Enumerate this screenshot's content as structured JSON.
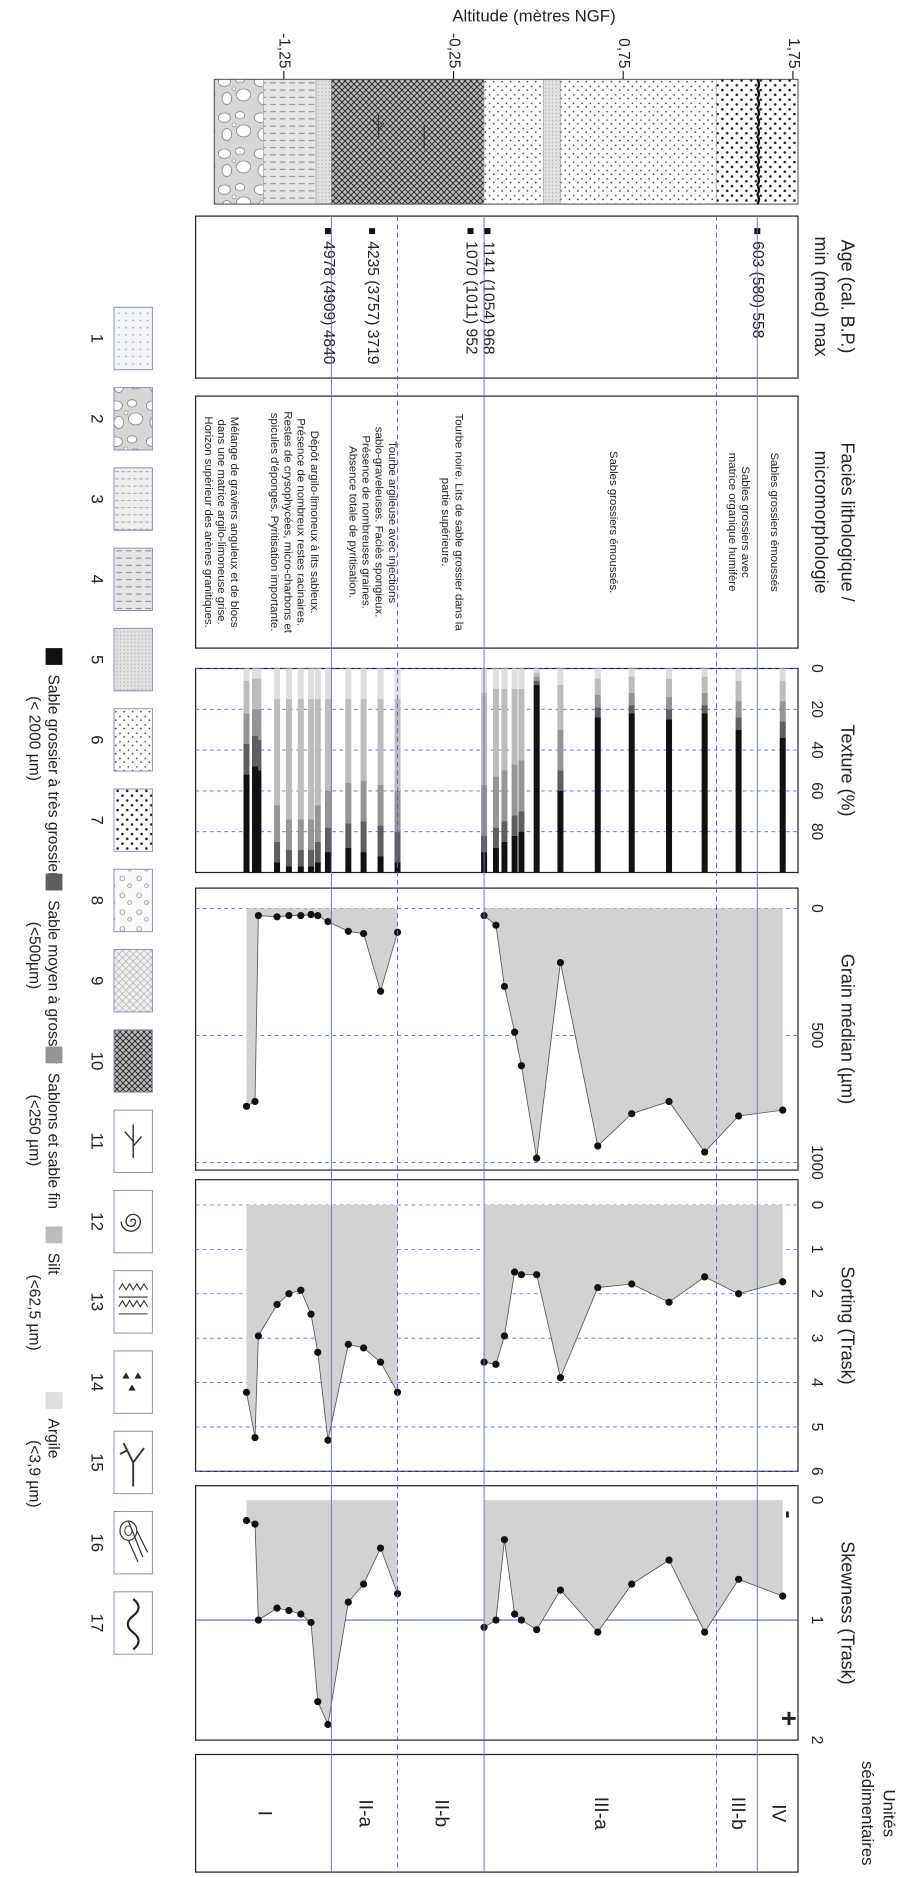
{
  "chart_data": {
    "type": "strat",
    "title": "Altitude (mètres NGF)",
    "altlim": [
      -1.77,
      1.78
    ],
    "altticks": [
      {
        "value": -1.25,
        "label": "-1,25"
      },
      {
        "value": -0.25,
        "label": "-0,25"
      },
      {
        "value": 0.75,
        "label": "0,75"
      },
      {
        "value": 1.75,
        "label": "1,75"
      }
    ],
    "lithology": [
      {
        "bottom": -1.66,
        "top": -1.37,
        "pattern": 2
      },
      {
        "bottom": -1.37,
        "top": -1.06,
        "pattern": 4
      },
      {
        "bottom": -1.06,
        "top": -0.97,
        "pattern": 5
      },
      {
        "bottom": -0.97,
        "top": -0.07,
        "pattern": 10
      },
      {
        "bottom": -0.07,
        "top": 0.28,
        "pattern": 6
      },
      {
        "bottom": 0.28,
        "top": 0.38,
        "pattern": 5
      },
      {
        "bottom": 0.38,
        "top": 1.3,
        "pattern": 6
      },
      {
        "bottom": 1.3,
        "top": 1.54,
        "pattern": 7
      },
      {
        "bottom": 1.54,
        "top": 1.78,
        "pattern": 7
      }
    ],
    "age": {
      "title_lines": [
        "Age (cal. B.P.)",
        "min (med) max"
      ],
      "dates": [
        {
          "altitude": 1.54,
          "label": "603 (580) 558"
        },
        {
          "altitude": -0.05,
          "label": "1141 (1054) 968"
        },
        {
          "altitude": -0.15,
          "label": "1070 (1011) 952"
        },
        {
          "altitude": -0.73,
          "label": "4235 (3757) 3719"
        },
        {
          "altitude": -0.99,
          "label": "4978 (4909) 4840"
        }
      ]
    },
    "facies": {
      "title_lines": [
        "Faciès lithologique /",
        "micromorphologie"
      ],
      "notes": [
        {
          "altitude": 1.64,
          "lines": [
            "Sables grossiers émoussés"
          ]
        },
        {
          "altitude": 1.43,
          "lines": [
            "Sables grossiers avec",
            "matrice organique humifère"
          ]
        },
        {
          "altitude": 0.69,
          "lines": [
            "Sables grossiers émoussés."
          ]
        },
        {
          "altitude": -0.26,
          "lines": [
            "Tourbe noire. Lits de sable grossier dans la",
            "partie supérieure."
          ]
        },
        {
          "altitude": -0.73,
          "lines": [
            "Tourbe argileuse avec injections",
            "sablo-graveleuses. Faciès spongieux.",
            "Présence de nombreuses graines.",
            "Absence totale de pyritisation."
          ]
        },
        {
          "altitude": -1.19,
          "lines": [
            "Dépôt argilo-limoneux à lits sableux.",
            "Présence de nombreux restes racinaires.",
            "Restes de crysophycées, micro-charbons et",
            "spicules d'éponges. Pyritisation importante."
          ]
        },
        {
          "altitude": -1.62,
          "lines": [
            "Mélange de graviers anguleux et de blocs",
            "dans une matrice argilo-limoneuse grise.",
            "Horizon supérieur des arènes granitiques."
          ]
        }
      ]
    },
    "altitude": [
      1.69,
      1.43,
      1.23,
      1.02,
      0.8,
      0.6,
      0.38,
      0.24,
      0.15,
      0.11,
      0.05,
      0.0,
      -0.07,
      null,
      -0.58,
      -0.68,
      -0.78,
      -0.87,
      -0.99,
      -1.05,
      -1.09,
      -1.15,
      -1.22,
      -1.29,
      -1.4,
      -1.42,
      -1.47
    ],
    "texture": {
      "title": "Texture (%)",
      "xlim": [
        0,
        100
      ],
      "xticks": [
        0,
        20,
        40,
        60,
        80
      ],
      "grid": true,
      "series": [
        {
          "name": "Sable grossier à très grossier",
          "range": "(< 2000 µm)",
          "color": "#111111",
          "values": [
            66,
            70,
            78,
            75,
            78,
            76,
            40,
            92,
            20,
            18,
            15,
            12,
            10,
            null,
            5,
            8,
            10,
            12,
            10,
            5,
            3,
            3,
            3,
            5,
            50,
            52,
            48
          ]
        },
        {
          "name": "Sable moyen à grossier",
          "range": "(<500µm)",
          "color": "#5e5e5e",
          "values": [
            8,
            6,
            4,
            5,
            4,
            5,
            10,
            2,
            10,
            10,
            10,
            10,
            8,
            null,
            15,
            15,
            15,
            12,
            12,
            10,
            8,
            8,
            8,
            10,
            15,
            15,
            15
          ]
        },
        {
          "name": "Sablons et sable fin",
          "range": "(<250 µm)",
          "color": "#959595",
          "values": [
            10,
            8,
            6,
            6,
            6,
            6,
            20,
            2,
            25,
            25,
            25,
            25,
            25,
            null,
            20,
            20,
            20,
            20,
            18,
            18,
            15,
            15,
            15,
            18,
            15,
            13,
            15
          ]
        },
        {
          "name": "Silt",
          "range": "(<62,5 µm)",
          "color": "#bcbcbc",
          "values": [
            10,
            10,
            8,
            9,
            8,
            8,
            22,
            2,
            35,
            37,
            40,
            43,
            45,
            null,
            45,
            42,
            40,
            41,
            45,
            52,
            59,
            59,
            59,
            52,
            15,
            15,
            16
          ]
        },
        {
          "name": "Argile",
          "range": "(<3,9 µm)",
          "color": "#dedede",
          "values": [
            6,
            6,
            4,
            5,
            4,
            5,
            8,
            2,
            10,
            10,
            10,
            10,
            12,
            null,
            15,
            15,
            15,
            15,
            15,
            15,
            15,
            15,
            15,
            15,
            5,
            5,
            6
          ]
        }
      ]
    },
    "grain": {
      "title": "Grain médian (µm)",
      "xlim": [
        -80,
        1030
      ],
      "xticks": [
        0,
        500,
        1000
      ],
      "grid": true,
      "values": [
        794,
        817,
        959,
        760,
        808,
        935,
        213,
        983,
        619,
        487,
        307,
        66,
        28,
        null,
        94,
        326,
        99,
        90,
        52,
        28,
        24,
        28,
        28,
        33,
        28,
        760,
        779
      ]
    },
    "sorting": {
      "title": "Sorting (Trask)",
      "xlim": [
        -0.57,
        6
      ],
      "xticks": [
        0,
        1,
        2,
        3,
        4,
        5,
        6
      ],
      "grid": true,
      "values": [
        1.73,
        2.0,
        1.62,
        2.19,
        1.78,
        1.86,
        3.89,
        1.57,
        1.57,
        1.51,
        2.95,
        3.59,
        3.54,
        null,
        4.22,
        3.54,
        3.22,
        3.14,
        5.3,
        3.32,
        2.46,
        1.92,
        2.0,
        2.24,
        2.95,
        5.24,
        4.22
      ]
    },
    "skewness": {
      "title": "Skewness (Trask)",
      "xlim": [
        -0.12,
        2
      ],
      "xticks": [
        0,
        1,
        2
      ],
      "grid": false,
      "reference": 1,
      "low_label": "-",
      "high_label": "+",
      "values": [
        0.8,
        0.66,
        1.1,
        0.5,
        0.7,
        1.1,
        0.75,
        1.08,
        1.0,
        0.95,
        0.33,
        1.0,
        1.06,
        null,
        0.78,
        0.4,
        0.7,
        0.85,
        1.87,
        1.68,
        1.02,
        0.95,
        0.92,
        0.9,
        1.0,
        0.2,
        0.17
      ]
    },
    "units": {
      "title_lines": [
        "Unités",
        "sédimentaires"
      ],
      "items": [
        {
          "name": "IV",
          "top": 1.78,
          "bottom": 1.54,
          "boundary": "solid"
        },
        {
          "name": "III-b",
          "top": 1.54,
          "bottom": 1.3,
          "boundary": "dashed"
        },
        {
          "name": "III-a",
          "top": 1.3,
          "bottom": -0.07,
          "boundary": "solid"
        },
        {
          "name": "II-b",
          "top": -0.07,
          "bottom": -0.58,
          "boundary": "dashed"
        },
        {
          "name": "II-a",
          "top": -0.58,
          "bottom": -0.97,
          "boundary": "solid"
        },
        {
          "name": "I",
          "top": -0.97,
          "bottom": -1.77,
          "boundary": "solid"
        }
      ]
    },
    "legend": [
      1,
      2,
      3,
      4,
      5,
      6,
      7,
      8,
      9,
      10,
      11,
      12,
      13,
      14,
      15,
      16,
      17
    ]
  }
}
